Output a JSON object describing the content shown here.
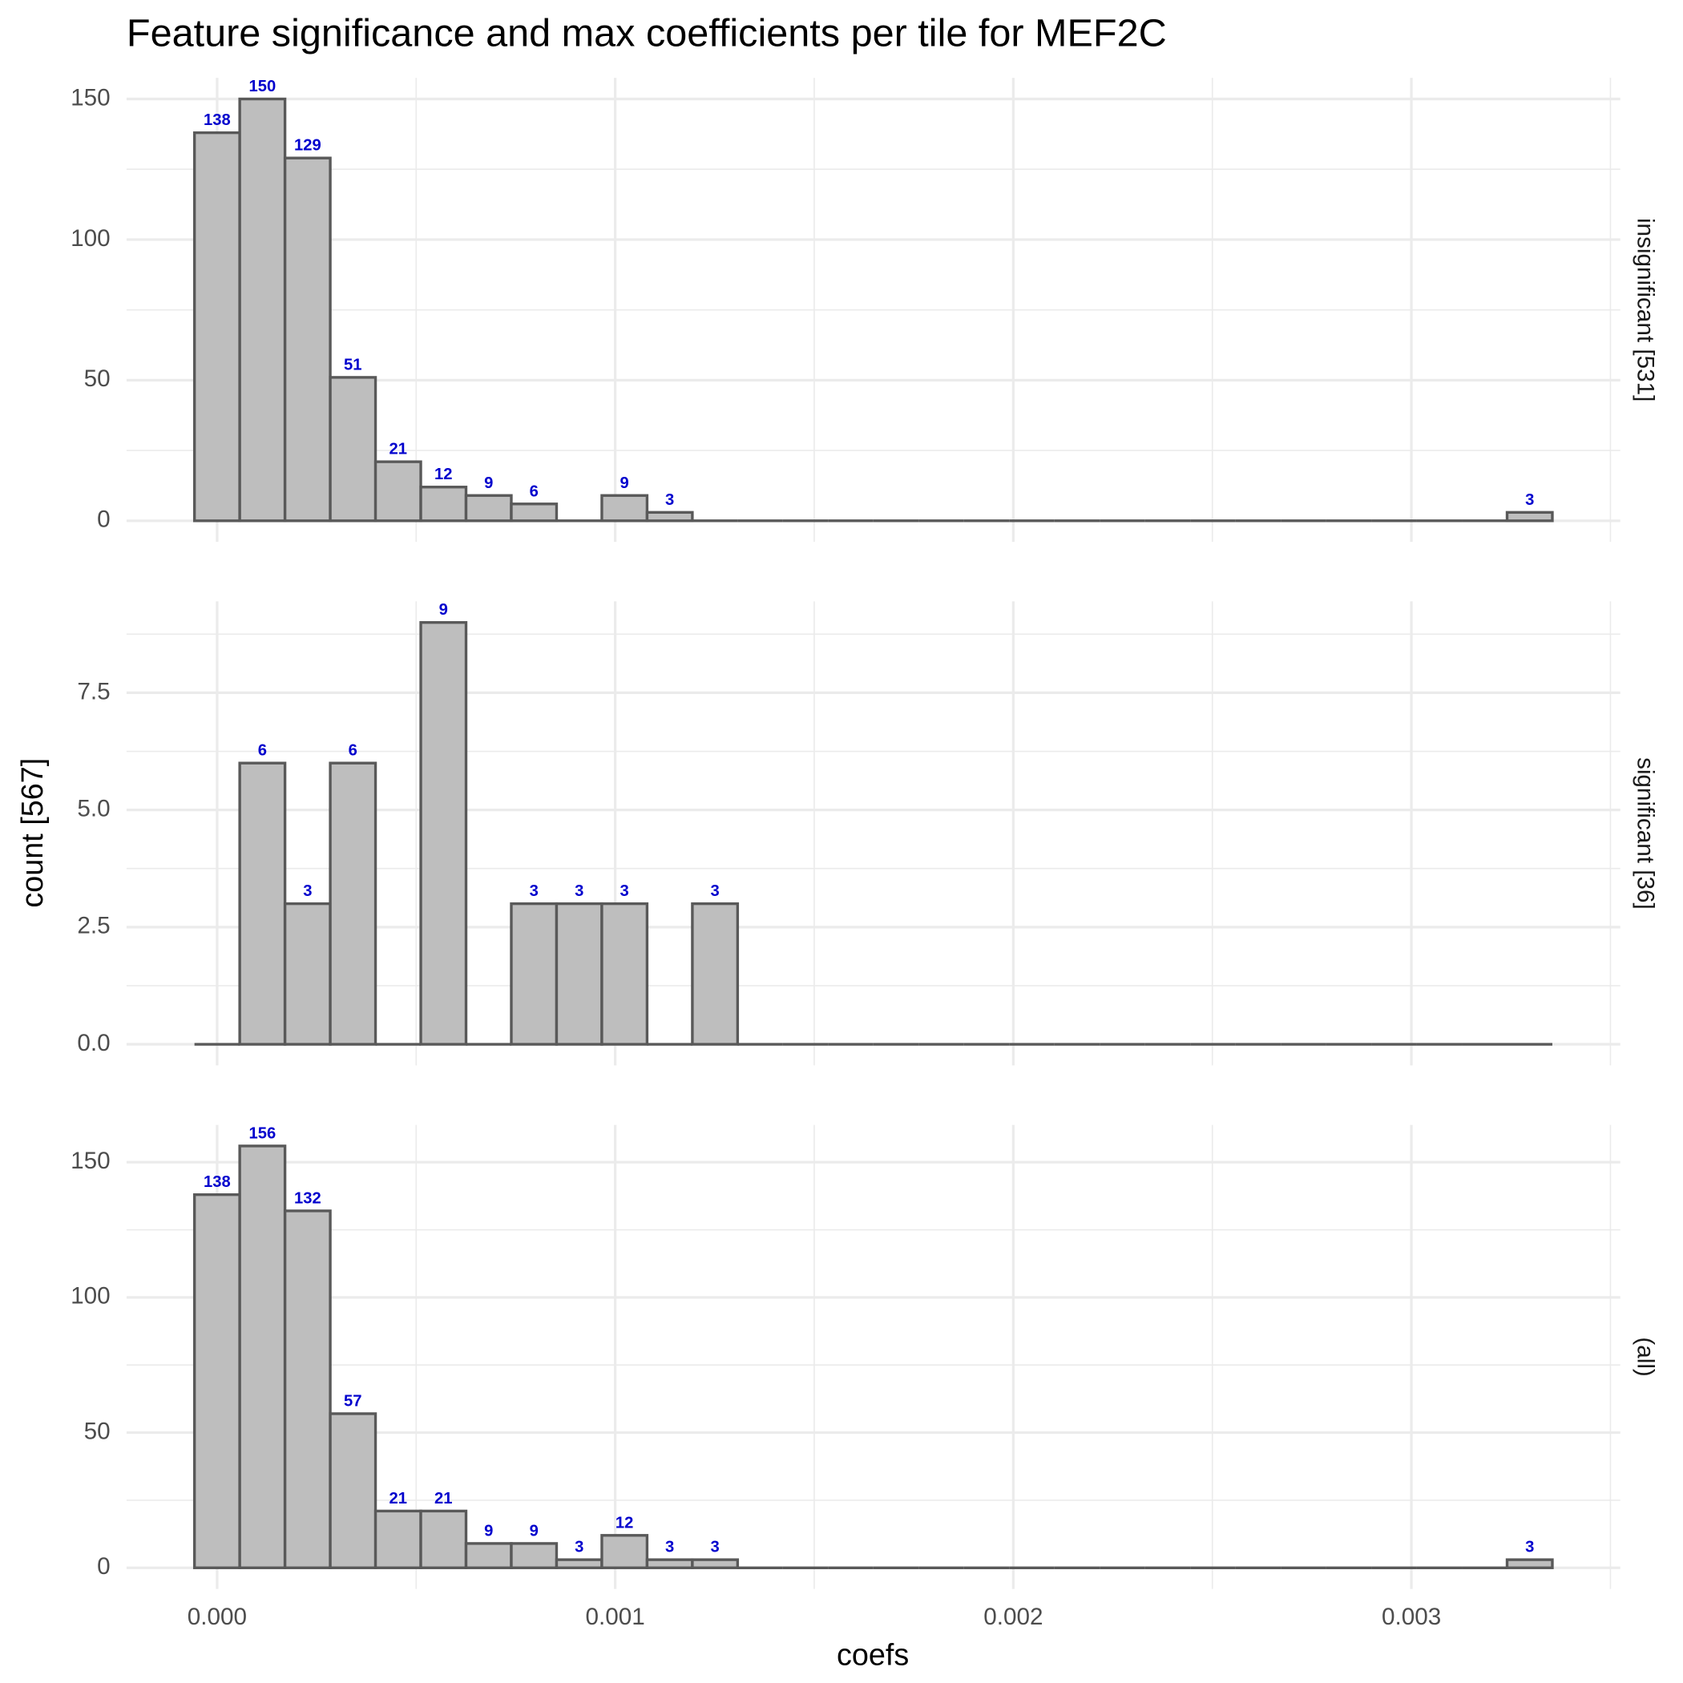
{
  "title": "Feature significance and max coefficients per tile for MEF2C",
  "x_label": "coefs",
  "y_label": "count [567]",
  "chart_data": [
    {
      "type": "histogram",
      "facet": "insignificant [531]",
      "bins": [
        -5.69e-05,
        5.68e-05,
        0.0001705,
        0.0002842,
        0.0003979,
        0.0005116,
        0.0006253,
        0.000739,
        0.0008527,
        0.0009664,
        0.0010801,
        0.0011938,
        0.0013075,
        0.0014212,
        0.0015349,
        0.0016486,
        0.0017623,
        0.001876,
        0.0019897,
        0.0021034,
        0.0022171,
        0.0023308,
        0.0024445,
        0.0025582,
        0.0026719,
        0.0027856,
        0.0028993,
        0.003013,
        0.0031267,
        0.0032404,
        0.0033541
      ],
      "values": [
        138,
        150,
        129,
        51,
        21,
        12,
        9,
        6,
        0,
        9,
        3,
        0,
        0,
        0,
        0,
        0,
        0,
        0,
        0,
        0,
        0,
        0,
        0,
        0,
        0,
        0,
        0,
        0,
        0,
        3
      ],
      "color": "#bebebe",
      "edge_color": "#595959",
      "label_color": "#0000cd",
      "grid": true,
      "xlim": [
        -0.0002275,
        0.0035247
      ],
      "xticks": [
        {
          "value": 0,
          "label": "0.000"
        },
        {
          "value": 0.001,
          "label": "0.001"
        },
        {
          "value": 0.002,
          "label": "0.002"
        },
        {
          "value": 0.003,
          "label": "0.003"
        }
      ],
      "minor_xticks": [
        0.0005,
        0.0015,
        0.0025,
        0.0035
      ],
      "ylim": [
        -7.5,
        157.5
      ],
      "yticks": [
        0,
        50,
        100,
        150
      ],
      "minor_yticks": [
        25,
        75,
        125
      ]
    },
    {
      "type": "histogram",
      "facet": "significant [36]",
      "bins": [
        -5.69e-05,
        5.68e-05,
        0.0001705,
        0.0002842,
        0.0003979,
        0.0005116,
        0.0006253,
        0.000739,
        0.0008527,
        0.0009664,
        0.0010801,
        0.0011938,
        0.0013075,
        0.0014212,
        0.0015349,
        0.0016486,
        0.0017623,
        0.001876,
        0.0019897,
        0.0021034,
        0.0022171,
        0.0023308,
        0.0024445,
        0.0025582,
        0.0026719,
        0.0027856,
        0.0028993,
        0.003013,
        0.0031267,
        0.0032404,
        0.0033541
      ],
      "values": [
        0,
        6,
        3,
        6,
        0,
        9,
        0,
        3,
        3,
        3,
        0,
        3,
        0,
        0,
        0,
        0,
        0,
        0,
        0,
        0,
        0,
        0,
        0,
        0,
        0,
        0,
        0,
        0,
        0,
        0
      ],
      "color": "#bebebe",
      "edge_color": "#595959",
      "label_color": "#0000cd",
      "grid": true,
      "xlim": [
        -0.0002275,
        0.0035247
      ],
      "xticks": [
        {
          "value": 0,
          "label": "0.000"
        },
        {
          "value": 0.001,
          "label": "0.001"
        },
        {
          "value": 0.002,
          "label": "0.002"
        },
        {
          "value": 0.003,
          "label": "0.003"
        }
      ],
      "minor_xticks": [
        0.0005,
        0.0015,
        0.0025,
        0.0035
      ],
      "ylim": [
        -0.45,
        9.45
      ],
      "yticks": [
        {
          "value": 0,
          "label": "0.0"
        },
        2.5,
        {
          "value": 5,
          "label": "5.0"
        },
        7.5
      ],
      "minor_yticks": [
        1.25,
        3.75,
        6.25,
        8.75
      ]
    },
    {
      "type": "histogram",
      "facet": "(all)",
      "bins": [
        -5.69e-05,
        5.68e-05,
        0.0001705,
        0.0002842,
        0.0003979,
        0.0005116,
        0.0006253,
        0.000739,
        0.0008527,
        0.0009664,
        0.0010801,
        0.0011938,
        0.0013075,
        0.0014212,
        0.0015349,
        0.0016486,
        0.0017623,
        0.001876,
        0.0019897,
        0.0021034,
        0.0022171,
        0.0023308,
        0.0024445,
        0.0025582,
        0.0026719,
        0.0027856,
        0.0028993,
        0.003013,
        0.0031267,
        0.0032404,
        0.0033541
      ],
      "values": [
        138,
        156,
        132,
        57,
        21,
        21,
        9,
        9,
        3,
        12,
        3,
        3,
        0,
        0,
        0,
        0,
        0,
        0,
        0,
        0,
        0,
        0,
        0,
        0,
        0,
        0,
        0,
        0,
        0,
        3
      ],
      "color": "#bebebe",
      "edge_color": "#595959",
      "label_color": "#0000cd",
      "grid": true,
      "xlim": [
        -0.0002275,
        0.0035247
      ],
      "xticks": [
        {
          "value": 0,
          "label": "0.000"
        },
        {
          "value": 0.001,
          "label": "0.001"
        },
        {
          "value": 0.002,
          "label": "0.002"
        },
        {
          "value": 0.003,
          "label": "0.003"
        }
      ],
      "minor_xticks": [
        0.0005,
        0.0015,
        0.0025,
        0.0035
      ],
      "ylim": [
        -7.8,
        163.8
      ],
      "yticks": [
        0,
        50,
        100,
        150
      ],
      "minor_yticks": [
        25,
        75,
        125
      ]
    }
  ]
}
